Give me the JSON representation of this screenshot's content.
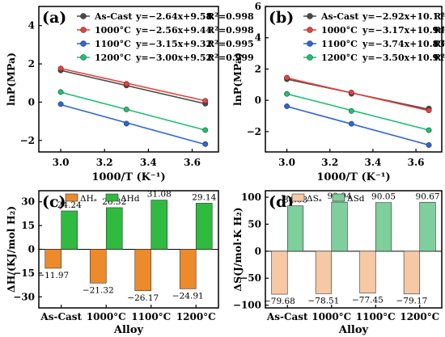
{
  "chart_data": [
    {
      "type": "scatter",
      "panel_label": "(a)",
      "xlabel": "1000/T  (K⁻¹)",
      "ylabel": "lnP(MPa)",
      "xlim": [
        2.9,
        3.72
      ],
      "ylim": [
        -2.6,
        5.0
      ],
      "xticks": [
        3.0,
        3.2,
        3.4,
        3.6
      ],
      "yticks": [
        -2,
        0,
        2,
        4
      ],
      "xtick_labels": [
        "3.0",
        "3.2",
        "3.4",
        "3.6"
      ],
      "ytick_labels": [
        "−2",
        "0",
        "2",
        "4"
      ],
      "legend_position": "top-left",
      "series": [
        {
          "name": "As-Cast",
          "color": "#4a4a4a",
          "fit": "y=−2.64x+9.58",
          "r2": "R²=0.998",
          "slope": -2.64,
          "intercept": 9.58,
          "x": [
            3.0,
            3.3,
            3.66
          ],
          "y": [
            1.66,
            0.87,
            -0.08
          ]
        },
        {
          "name": "1000°C",
          "color": "#e8403a",
          "fit": "y=−2.56x+9.44",
          "r2": "R²=0.998",
          "slope": -2.56,
          "intercept": 9.44,
          "x": [
            3.0,
            3.3,
            3.66
          ],
          "y": [
            1.76,
            0.96,
            0.07
          ]
        },
        {
          "name": "1100°C",
          "color": "#2f64d6",
          "fit": "y=−3.15x+9.32",
          "r2": "R²=0.995",
          "slope": -3.15,
          "intercept": 9.32,
          "x": [
            3.0,
            3.3,
            3.66
          ],
          "y": [
            -0.1,
            -1.12,
            -2.19
          ]
        },
        {
          "name": "1200°C",
          "color": "#1fbf73",
          "fit": "y=−3.00x+9.52",
          "r2": "R²=0.999",
          "slope": -3.0,
          "intercept": 9.52,
          "x": [
            3.0,
            3.3,
            3.66
          ],
          "y": [
            0.53,
            -0.38,
            -1.46
          ]
        }
      ]
    },
    {
      "type": "scatter",
      "panel_label": "(b)",
      "xlabel": "1000/T  (K⁻¹)",
      "ylabel": "lnP(MPa)",
      "xlim": [
        2.9,
        3.72
      ],
      "ylim": [
        -3.3,
        6.0
      ],
      "xticks": [
        3.0,
        3.2,
        3.4,
        3.6
      ],
      "yticks": [
        -2,
        0,
        2,
        4,
        6
      ],
      "xtick_labels": [
        "3.0",
        "3.2",
        "3.4",
        "3.6"
      ],
      "ytick_labels": [
        "−2",
        "0",
        "2",
        "4",
        "6"
      ],
      "legend_position": "top-left",
      "series": [
        {
          "name": "As-Cast",
          "color": "#4a4a4a",
          "fit": "y=−2.92x+10.11",
          "r2": "R²=0.983",
          "slope": -2.92,
          "intercept": 10.11,
          "x": [
            3.0,
            3.3,
            3.66
          ],
          "y": [
            1.35,
            0.42,
            -0.52
          ]
        },
        {
          "name": "1000°C",
          "color": "#e8403a",
          "fit": "y=−3.17x+10.94",
          "r2": "R²=0.998",
          "slope": -3.17,
          "intercept": 10.94,
          "x": [
            3.0,
            3.3,
            3.66
          ],
          "y": [
            1.45,
            0.5,
            -0.64
          ]
        },
        {
          "name": "1100°C",
          "color": "#2f64d6",
          "fit": "y=−3.74x+10.83",
          "r2": "R²=0.999",
          "slope": -3.74,
          "intercept": 10.83,
          "x": [
            3.0,
            3.3,
            3.66
          ],
          "y": [
            -0.38,
            -1.5,
            -2.86
          ]
        },
        {
          "name": "1200°C",
          "color": "#1fbf73",
          "fit": "y=−3.50x+10.91",
          "r2": "R²=0.999",
          "slope": -3.5,
          "intercept": 10.91,
          "x": [
            3.0,
            3.3,
            3.66
          ],
          "y": [
            0.41,
            -0.68,
            -1.91
          ]
        }
      ]
    },
    {
      "type": "bar",
      "panel_label": "(c)",
      "xlabel": "Alloy",
      "ylabel": "ΔH/(KJ/mol H₂)",
      "ylim": [
        -37,
        37
      ],
      "yticks": [
        -30,
        -15,
        0,
        15,
        30
      ],
      "ytick_labels": [
        "−30",
        "−15",
        "0",
        "15",
        "30"
      ],
      "categories": [
        "As-Cast",
        "1000°C",
        "1100°C",
        "1200°C"
      ],
      "legend_position": "top-left",
      "series": [
        {
          "name": "ΔHₐ",
          "color": "#ec8a2c",
          "values": [
            -11.97,
            -21.32,
            -26.17,
            -24.91
          ],
          "labels": [
            "−11.97",
            "−21.32",
            "−26.17",
            "−24.91"
          ]
        },
        {
          "name": "ΔHd",
          "color": "#2fbb3f",
          "values": [
            24.24,
            26.32,
            31.08,
            29.14
          ],
          "labels": [
            "24.24",
            "26.32",
            "31.08",
            "29.14"
          ]
        }
      ]
    },
    {
      "type": "bar",
      "panel_label": "(d)",
      "xlabel": "Alloy",
      "ylabel": "ΔS(J/mol·K H₂)",
      "ylim": [
        -105,
        112
      ],
      "yticks": [
        -100,
        -50,
        0,
        50,
        100
      ],
      "ytick_labels": [
        "−100",
        "−50",
        "0",
        "50",
        "100"
      ],
      "categories": [
        "As-Cast",
        "1000°C",
        "1100°C",
        "1200°C"
      ],
      "legend_position": "top-left",
      "series": [
        {
          "name": "ΔSₐ",
          "color": "#f6c8a4",
          "values": [
            -79.68,
            -78.51,
            -77.45,
            -79.17
          ],
          "labels": [
            "−79.68",
            "−78.51",
            "−77.45",
            "−79.17"
          ]
        },
        {
          "name": "ΔSd",
          "color": "#7ecf9b",
          "values": [
            84.08,
            90.94,
            90.05,
            90.67
          ],
          "labels": [
            "84.08",
            "90.94",
            "90.05",
            "90.67"
          ]
        }
      ]
    }
  ]
}
